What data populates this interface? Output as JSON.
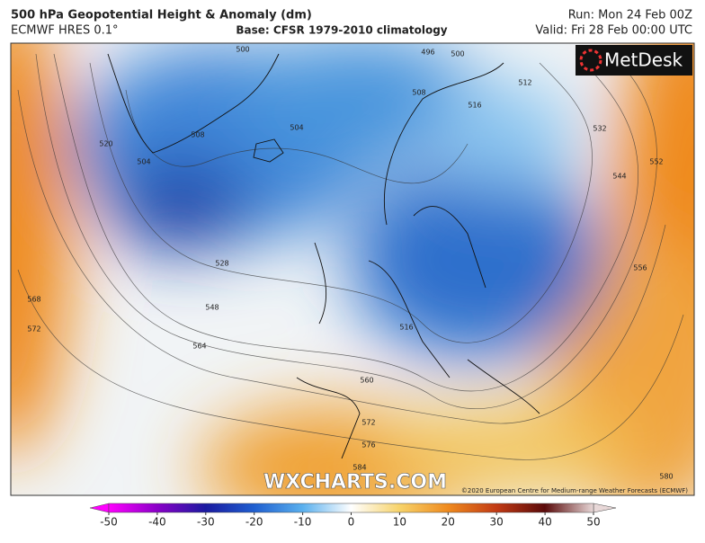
{
  "header": {
    "title": "500 hPa Geopotential Height & Anomaly (dm)",
    "model": "ECMWF HRES 0.1°",
    "base": "Base: CFSR 1979-2010 climatology",
    "run": "Run: Mon 24 Feb 00Z",
    "valid": "Valid: Fri 28 Feb 00:00 UTC"
  },
  "map": {
    "logo": "MetDesk",
    "watermark": "WXCHARTS.COM",
    "copyright": "©2020 European Centre for Medium-range Weather Forecasts (ECMWF)",
    "contour_labels": [
      496,
      500,
      500,
      504,
      508,
      504,
      508,
      512,
      516,
      520,
      528,
      532,
      544,
      548,
      552,
      556,
      564,
      560,
      568,
      572,
      572,
      576,
      580,
      584,
      516
    ]
  },
  "colorbar": {
    "lim": [
      -50,
      50
    ],
    "ticks": [
      -50,
      -40,
      -30,
      -20,
      -10,
      0,
      10,
      20,
      30,
      40,
      50
    ],
    "colors": [
      "#ff00ff",
      "#8a00c8",
      "#1a1aa0",
      "#1f5fd0",
      "#5ab0ee",
      "#ffffff",
      "#f7d36a",
      "#ef8a1e",
      "#c23a14",
      "#5a0a0a",
      "#e8d8d8"
    ]
  }
}
